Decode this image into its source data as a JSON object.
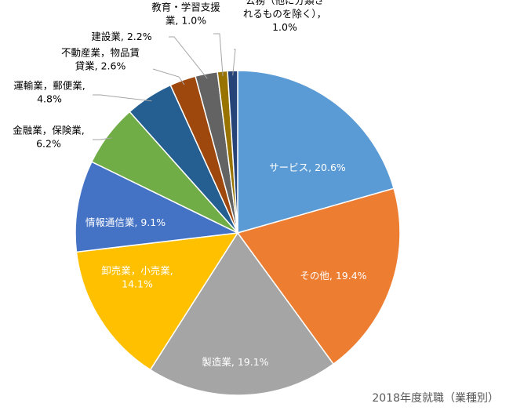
{
  "chart_data": {
    "type": "pie",
    "title": "",
    "caption": "2018年度就職（業種別）",
    "slices": [
      {
        "key": "service",
        "line1": "サービス, 20.6%",
        "line2": "",
        "value": 20.6,
        "color": "#5B9BD5",
        "label_color": "#ffffff"
      },
      {
        "key": "other",
        "line1": "その他, 19.4%",
        "line2": "",
        "value": 19.4,
        "color": "#ED7D31",
        "label_color": "#ffffff"
      },
      {
        "key": "manufacturing",
        "line1": "製造業, 19.1%",
        "line2": "",
        "value": 19.1,
        "color": "#A5A5A5",
        "label_color": "#ffffff"
      },
      {
        "key": "wholesale-retail",
        "line1": "卸売業，小売業,",
        "line2": "14.1%",
        "value": 14.1,
        "color": "#FFC000",
        "label_color": "#ffffff"
      },
      {
        "key": "information",
        "line1": "情報通信業, 9.1%",
        "line2": "",
        "value": 9.1,
        "color": "#4472C4",
        "label_color": "#ffffff"
      },
      {
        "key": "finance",
        "line1": "金融業，保険業,",
        "line2": "6.2%",
        "value": 6.2,
        "color": "#70AD47",
        "label_color": "#000000"
      },
      {
        "key": "transport",
        "line1": "運輸業，郵便業,",
        "line2": "4.8%",
        "value": 4.8,
        "color": "#255E91",
        "label_color": "#000000"
      },
      {
        "key": "realestate",
        "line1": "不動産業，物品賃",
        "line2": "貸業, 2.6%",
        "value": 2.6,
        "color": "#9E480E",
        "label_color": "#000000"
      },
      {
        "key": "construction",
        "line1": "建設業, 2.2%",
        "line2": "",
        "value": 2.2,
        "color": "#636363",
        "label_color": "#000000"
      },
      {
        "key": "education",
        "line1": "教育・学習支援",
        "line2": "業, 1.0%",
        "value": 1.0,
        "color": "#997300",
        "label_color": "#000000"
      },
      {
        "key": "public",
        "line1": "公務（他に分類さ",
        "line2": "れるものを除く），",
        "line3": "1.0%",
        "value": 1.0,
        "color": "#264478",
        "label_color": "#000000"
      }
    ]
  }
}
